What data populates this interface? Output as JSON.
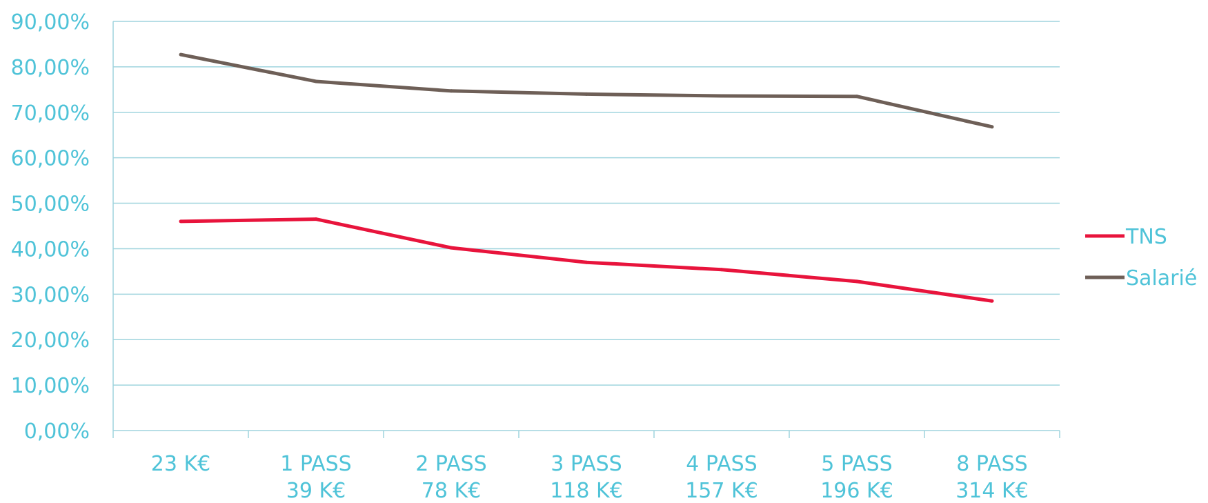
{
  "chart_data": {
    "type": "line",
    "categories": [
      [
        "23 K€"
      ],
      [
        "1 PASS",
        "39 K€"
      ],
      [
        "2 PASS",
        "78 K€"
      ],
      [
        "3 PASS",
        "118 K€"
      ],
      [
        "4 PASS",
        "157 K€"
      ],
      [
        "5 PASS",
        "196 K€"
      ],
      [
        "8 PASS",
        "314 K€"
      ]
    ],
    "series": [
      {
        "name": "TNS",
        "color": "#e8143c",
        "values": [
          46.0,
          46.5,
          40.2,
          37.0,
          35.4,
          32.8,
          28.5
        ]
      },
      {
        "name": "Salarié",
        "color": "#6e5f57",
        "values": [
          82.7,
          76.8,
          74.7,
          74.0,
          73.6,
          73.5,
          66.8
        ]
      }
    ],
    "y_ticks": [
      "0,00%",
      "10,00%",
      "20,00%",
      "30,00%",
      "40,00%",
      "50,00%",
      "60,00%",
      "70,00%",
      "80,00%",
      "90,00%"
    ],
    "ylim": [
      0,
      90
    ],
    "grid": true,
    "legend_position": "right",
    "axis_text_color": "#4fc3d8",
    "grid_color": "#9fd4de"
  }
}
